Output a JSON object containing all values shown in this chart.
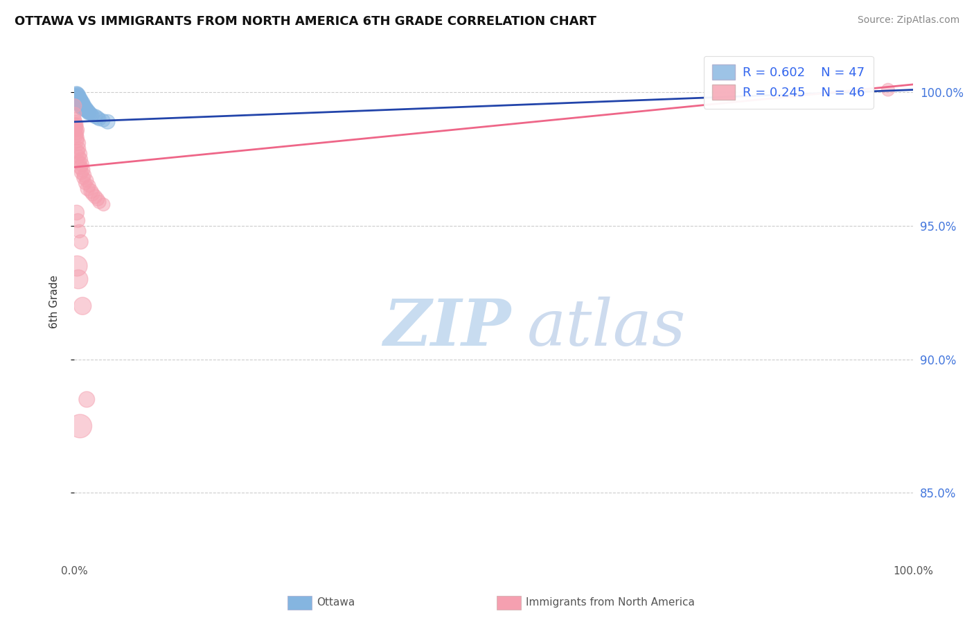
{
  "title": "OTTAWA VS IMMIGRANTS FROM NORTH AMERICA 6TH GRADE CORRELATION CHART",
  "source": "Source: ZipAtlas.com",
  "ylabel": "6th Grade",
  "ylabel_right_ticks": [
    100.0,
    95.0,
    90.0,
    85.0
  ],
  "legend_R_blue": "R = 0.602",
  "legend_N_blue": "N = 47",
  "legend_R_pink": "R = 0.245",
  "legend_N_pink": "N = 46",
  "color_blue": "#85B5E0",
  "color_pink": "#F5A0B0",
  "color_line_blue": "#2244AA",
  "color_line_pink": "#EE6688",
  "xmin": 0.0,
  "xmax": 100.0,
  "ymin": 82.5,
  "ymax": 101.8,
  "grid_color": "#CCCCCC",
  "background_color": "#FFFFFF",
  "blue_points": [
    [
      0.1,
      99.9
    ],
    [
      0.15,
      99.85
    ],
    [
      0.2,
      99.8
    ],
    [
      0.25,
      99.75
    ],
    [
      0.3,
      99.95
    ],
    [
      0.35,
      99.7
    ],
    [
      0.4,
      99.9
    ],
    [
      0.45,
      99.6
    ],
    [
      0.5,
      99.85
    ],
    [
      0.55,
      99.55
    ],
    [
      0.6,
      99.8
    ],
    [
      0.65,
      99.5
    ],
    [
      0.7,
      99.75
    ],
    [
      0.75,
      99.45
    ],
    [
      0.8,
      99.7
    ],
    [
      0.85,
      99.4
    ],
    [
      0.9,
      99.65
    ],
    [
      0.95,
      99.35
    ],
    [
      1.0,
      99.6
    ],
    [
      1.1,
      99.55
    ],
    [
      1.2,
      99.5
    ],
    [
      1.3,
      99.45
    ],
    [
      1.4,
      99.4
    ],
    [
      1.5,
      99.35
    ],
    [
      1.6,
      99.3
    ],
    [
      1.8,
      99.25
    ],
    [
      2.0,
      99.2
    ],
    [
      2.2,
      99.15
    ],
    [
      2.5,
      99.1
    ],
    [
      2.8,
      99.05
    ],
    [
      3.0,
      99.0
    ],
    [
      3.5,
      98.95
    ],
    [
      4.0,
      98.9
    ],
    [
      0.12,
      99.88
    ],
    [
      0.22,
      99.82
    ],
    [
      0.32,
      99.92
    ],
    [
      0.42,
      99.78
    ],
    [
      0.52,
      99.72
    ],
    [
      0.62,
      99.68
    ],
    [
      0.72,
      99.62
    ],
    [
      0.82,
      99.58
    ],
    [
      0.92,
      99.52
    ],
    [
      1.05,
      99.48
    ],
    [
      1.15,
      99.42
    ],
    [
      1.25,
      99.38
    ],
    [
      1.45,
      99.32
    ],
    [
      1.7,
      99.22
    ]
  ],
  "blue_sizes": [
    60,
    50,
    70,
    55,
    80,
    65,
    90,
    75,
    85,
    60,
    70,
    55,
    80,
    65,
    75,
    60,
    70,
    55,
    80,
    65,
    70,
    60,
    75,
    65,
    80,
    70,
    65,
    60,
    75,
    70,
    65,
    60,
    75,
    55,
    60,
    70,
    65,
    60,
    55,
    65,
    60,
    55,
    70,
    65,
    60,
    70,
    65
  ],
  "pink_points": [
    [
      0.05,
      99.5
    ],
    [
      0.1,
      99.2
    ],
    [
      0.15,
      98.9
    ],
    [
      0.2,
      98.7
    ],
    [
      0.25,
      98.5
    ],
    [
      0.3,
      98.8
    ],
    [
      0.35,
      98.3
    ],
    [
      0.4,
      98.6
    ],
    [
      0.5,
      98.1
    ],
    [
      0.6,
      97.9
    ],
    [
      0.7,
      97.7
    ],
    [
      0.8,
      97.5
    ],
    [
      0.9,
      97.3
    ],
    [
      1.0,
      97.1
    ],
    [
      1.2,
      96.9
    ],
    [
      1.5,
      96.7
    ],
    [
      1.8,
      96.5
    ],
    [
      2.0,
      96.3
    ],
    [
      2.5,
      96.1
    ],
    [
      3.0,
      95.9
    ],
    [
      0.08,
      99.0
    ],
    [
      0.12,
      98.8
    ],
    [
      0.18,
      98.6
    ],
    [
      0.22,
      98.4
    ],
    [
      0.28,
      98.2
    ],
    [
      0.4,
      97.8
    ],
    [
      0.55,
      97.6
    ],
    [
      0.65,
      97.4
    ],
    [
      0.75,
      97.2
    ],
    [
      0.85,
      97.0
    ],
    [
      1.1,
      96.8
    ],
    [
      1.3,
      96.6
    ],
    [
      1.6,
      96.4
    ],
    [
      2.2,
      96.2
    ],
    [
      2.8,
      96.0
    ],
    [
      3.5,
      95.8
    ],
    [
      0.3,
      95.5
    ],
    [
      0.45,
      95.2
    ],
    [
      0.6,
      94.8
    ],
    [
      0.8,
      94.4
    ],
    [
      0.35,
      93.5
    ],
    [
      0.5,
      93.0
    ],
    [
      1.0,
      92.0
    ],
    [
      1.5,
      88.5
    ],
    [
      0.7,
      87.5
    ],
    [
      97.0,
      100.1
    ]
  ],
  "pink_sizes": [
    70,
    60,
    65,
    75,
    80,
    60,
    70,
    65,
    75,
    60,
    70,
    65,
    75,
    80,
    70,
    65,
    60,
    75,
    70,
    65,
    60,
    70,
    65,
    75,
    80,
    70,
    65,
    60,
    75,
    70,
    65,
    60,
    75,
    70,
    65,
    60,
    80,
    70,
    65,
    75,
    150,
    130,
    110,
    90,
    200,
    60
  ],
  "blue_line_x": [
    0.0,
    100.0
  ],
  "blue_line_y": [
    98.9,
    100.1
  ],
  "pink_line_x": [
    0.0,
    100.0
  ],
  "pink_line_y": [
    97.2,
    100.3
  ]
}
